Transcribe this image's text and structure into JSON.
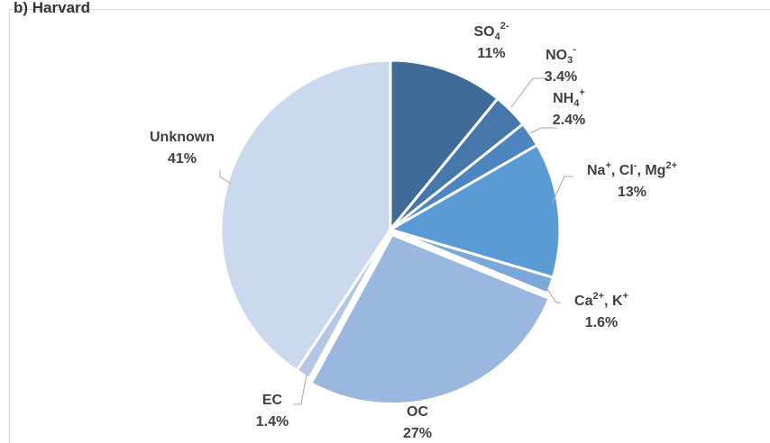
{
  "page": {
    "cut_title": "b) Harvard"
  },
  "chart_data": {
    "type": "pie",
    "title": "",
    "start_angle_deg": 0,
    "direction": "clockwise",
    "slices": [
      {
        "label": "SO4 2-",
        "label_main": "SO",
        "label_sub": "4",
        "label_sup": "2-",
        "value": 11,
        "value_label": "11%",
        "color": "#3f6b99"
      },
      {
        "label": "NO3 -",
        "label_main": "NO",
        "label_sub": "3",
        "label_sup": "-",
        "value": 3.4,
        "value_label": "3.4%",
        "color": "#4677ab"
      },
      {
        "label": "NH4 +",
        "label_main": "NH",
        "label_sub": "4",
        "label_sup": "+",
        "value": 2.4,
        "value_label": "2.4%",
        "color": "#4d85c0"
      },
      {
        "label": "Na+, Cl-, Mg2+",
        "label_main": "Na",
        "label_sup": "+",
        "label_rest": ", Cl",
        "label_sup2": "-",
        "label_rest2": ", Mg",
        "label_sup3": "2+",
        "value": 13,
        "value_label": "13%",
        "color": "#5b9bd5"
      },
      {
        "label": "Ca2+, K+",
        "label_main": "Ca",
        "label_sup": "2+",
        "label_rest": ", K",
        "label_sup2": "+",
        "value": 1.6,
        "value_label": "1.6%",
        "color": "#7ba7d9"
      },
      {
        "label": "OC",
        "label_main": "OC",
        "value": 27,
        "value_label": "27%",
        "color": "#9ab7df"
      },
      {
        "label": "EC",
        "label_main": "EC",
        "value": 1.4,
        "value_label": "1.4%",
        "color": "#b4c8e6"
      },
      {
        "label": "Unknown",
        "label_main": "Unknown",
        "value": 41,
        "value_label": "41%",
        "color": "#cbd9ee"
      }
    ]
  }
}
